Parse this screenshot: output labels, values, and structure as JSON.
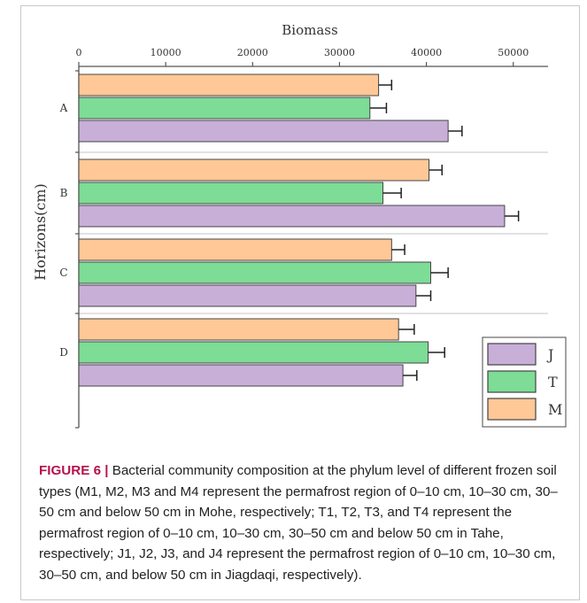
{
  "chart_data": {
    "type": "bar",
    "orientation": "horizontal",
    "title": "Biomass",
    "ylabel": "Horizons(cm)",
    "categories": [
      "A",
      "B",
      "C",
      "D"
    ],
    "xlim": [
      0,
      54000
    ],
    "xticks": [
      0,
      10000,
      20000,
      30000,
      40000,
      50000
    ],
    "grid": true,
    "legend_position": "bottom-right",
    "series": [
      {
        "name": "M",
        "color": "#FFC896",
        "values": [
          34500,
          40300,
          36000,
          36800
        ],
        "errors": [
          1500,
          1500,
          1500,
          1800
        ]
      },
      {
        "name": "T",
        "color": "#7DDC96",
        "values": [
          33500,
          35000,
          40500,
          40200
        ],
        "errors": [
          1900,
          2100,
          2000,
          1900
        ]
      },
      {
        "name": "J",
        "color": "#C8AFD8",
        "values": [
          42500,
          49000,
          38800,
          37300
        ],
        "errors": [
          1600,
          1600,
          1700,
          1600
        ]
      }
    ],
    "legend_order": [
      "J",
      "T",
      "M"
    ]
  },
  "caption": {
    "label": "FIGURE 6 |",
    "text": " Bacterial community composition at the phylum level of different frozen soil types (M1, M2, M3 and M4 represent the permafrost region of 0–10 cm, 10–30 cm, 30–50 cm and below 50 cm in Mohe, respectively; T1, T2, T3, and T4 represent the permafrost region of 0–10 cm, 10–30 cm, 30–50 cm and below 50 cm in Tahe, respectively; J1, J2, J3, and J4 represent the permafrost region of 0–10 cm, 10–30 cm, 30–50 cm, and below 50 cm in Jiagdaqi, respectively)."
  }
}
